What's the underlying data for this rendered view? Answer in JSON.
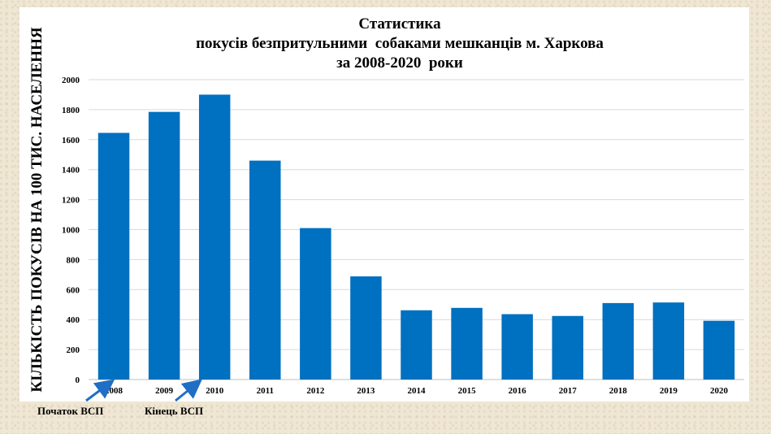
{
  "chart_data": {
    "type": "bar",
    "title": [
      "Статистика",
      "покусів безпритульними  собаками мешканців м. Харкова",
      "за 2008-2020  роки"
    ],
    "ylabel": "КІЛЬКІСТЬ ПОКУСІВ НА 100 ТИС. НАСЕЛЕННЯ",
    "xlabel": "",
    "ylim": [
      0,
      2000
    ],
    "yticks": [
      0,
      200,
      400,
      600,
      800,
      1000,
      1200,
      1400,
      1600,
      1800,
      2000
    ],
    "categories": [
      "2008",
      "2009",
      "2010",
      "2011",
      "2012",
      "2013",
      "2014",
      "2015",
      "2016",
      "2017",
      "2018",
      "2019",
      "2020"
    ],
    "values": [
      1645,
      1785,
      1900,
      1460,
      1010,
      688,
      462,
      478,
      436,
      424,
      510,
      514,
      392
    ],
    "bar_color": "#0070c0",
    "grid": true,
    "legend": "none"
  },
  "annotations": {
    "start": "Початок ВСП",
    "end": "Кінець ВСП",
    "arrow_color": "#1f6fc4"
  }
}
